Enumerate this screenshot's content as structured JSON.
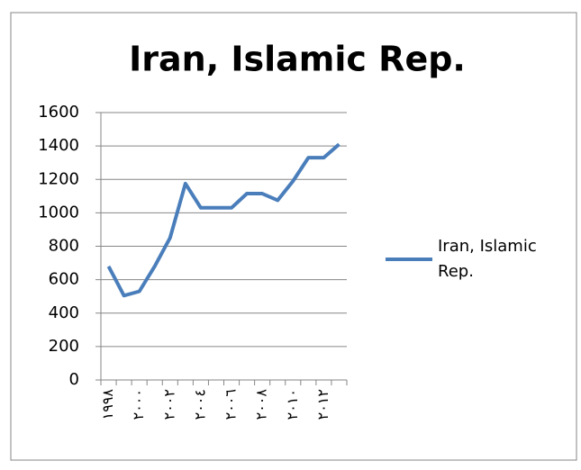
{
  "chart_data": {
    "type": "line",
    "title": "Iran, Islamic Rep.",
    "categories": [
      "١٩٩٨",
      null,
      "٢٠٠٠",
      null,
      "٢٠٠٢",
      null,
      "٢٠٠٤",
      null,
      "٢٠٠٦",
      null,
      "٢٠٠٨",
      null,
      "٢٠١٠",
      null,
      "٢٠١٢",
      null
    ],
    "series": [
      {
        "name": "Iran, Islamic Rep.",
        "color": "#4a7ebb",
        "values": [
          680,
          505,
          530,
          680,
          850,
          1175,
          1030,
          1030,
          1030,
          1115,
          1115,
          1075,
          1190,
          1330,
          1330,
          1410
        ]
      }
    ],
    "ylim": [
      0,
      1600
    ],
    "yticks": [
      0,
      200,
      400,
      600,
      800,
      1000,
      1200,
      1400,
      1600
    ],
    "grid": true,
    "legend": "right"
  }
}
